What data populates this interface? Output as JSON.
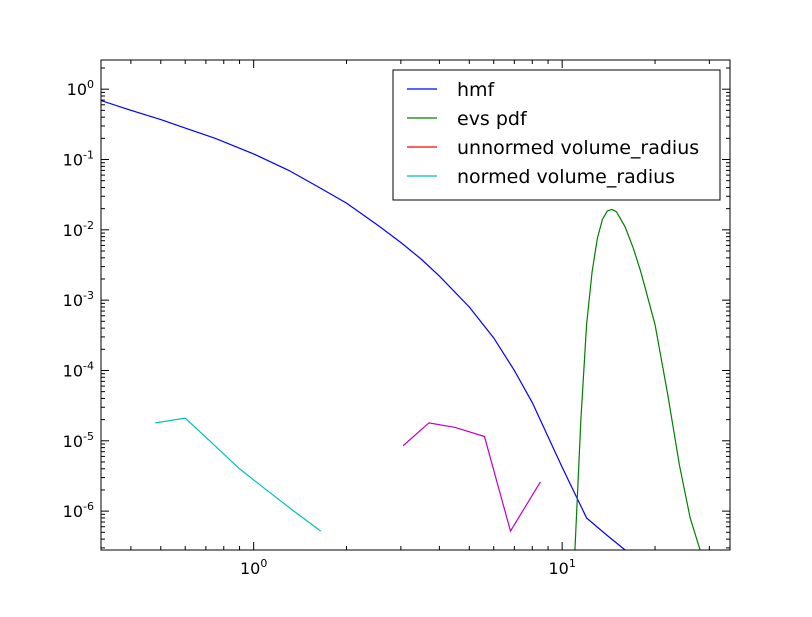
{
  "chart_data": {
    "type": "line",
    "x_scale": "log",
    "y_scale": "log",
    "xlim": [
      0.32,
      35
    ],
    "ylim": [
      2.8e-07,
      2.6
    ],
    "grid": false,
    "legend_placement": "top-right",
    "x_ticks": [
      {
        "value": 1,
        "base": "10",
        "exp": "0"
      },
      {
        "value": 10,
        "base": "10",
        "exp": "1"
      }
    ],
    "y_ticks": [
      {
        "value": 1,
        "base": "10",
        "exp": "0"
      },
      {
        "value": 0.1,
        "base": "10",
        "exp": "-1"
      },
      {
        "value": 0.01,
        "base": "10",
        "exp": "-2"
      },
      {
        "value": 0.001,
        "base": "10",
        "exp": "-3"
      },
      {
        "value": 0.0001,
        "base": "10",
        "exp": "-4"
      },
      {
        "value": 1e-05,
        "base": "10",
        "exp": "-5"
      },
      {
        "value": 1e-06,
        "base": "10",
        "exp": "-6"
      }
    ],
    "series": [
      {
        "name": "hmf",
        "color": "#0000ff",
        "in_legend": true,
        "x": [
          0.32,
          0.4,
          0.5,
          0.6,
          0.75,
          1.0,
          1.3,
          1.6,
          2.0,
          2.5,
          3.0,
          3.5,
          4.0,
          5.0,
          6.0,
          7.0,
          8.0,
          10.0,
          12.0,
          14.0,
          16.0
        ],
        "y": [
          0.69,
          0.5,
          0.37,
          0.28,
          0.2,
          0.12,
          0.07,
          0.042,
          0.024,
          0.012,
          0.0066,
          0.0038,
          0.0022,
          0.0008,
          0.00029,
          0.0001,
          3.5e-05,
          4.2e-06,
          8e-07,
          4.5e-07,
          2.8e-07
        ]
      },
      {
        "name": "evs pdf",
        "color": "#008000",
        "in_legend": true,
        "x": [
          11.0,
          11.5,
          12.0,
          12.5,
          13.0,
          13.5,
          14.0,
          14.5,
          15.0,
          16.0,
          17.0,
          18.0,
          20.0,
          22.0,
          24.0,
          26.0,
          28.0
        ],
        "y": [
          2.8e-07,
          2e-05,
          0.00045,
          0.0025,
          0.0075,
          0.014,
          0.0185,
          0.0195,
          0.018,
          0.011,
          0.0055,
          0.0025,
          0.00045,
          4.5e-05,
          4.5e-06,
          8e-07,
          2.8e-07
        ]
      },
      {
        "name": "unnormed volume_radius",
        "color": "#ff0000",
        "in_legend": true,
        "x": [],
        "y": []
      },
      {
        "name": "normed volume_radius",
        "color": "#00bfbf",
        "in_legend": true,
        "x": [
          0.48,
          0.6,
          0.72,
          0.9,
          1.1,
          1.35,
          1.65
        ],
        "y": [
          1.8e-05,
          2.1e-05,
          1e-05,
          4e-06,
          2e-06,
          1e-06,
          5.2e-07
        ]
      },
      {
        "name": "",
        "color": "#bf00bf",
        "in_legend": false,
        "x": [
          3.05,
          3.7,
          4.5,
          5.6,
          6.8,
          8.5
        ],
        "y": [
          8.5e-06,
          1.8e-05,
          1.55e-05,
          1.15e-05,
          5.2e-07,
          2.6e-06
        ]
      }
    ]
  }
}
